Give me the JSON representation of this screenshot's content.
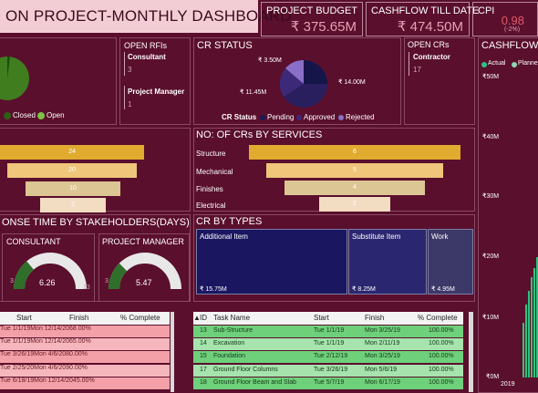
{
  "header": {
    "title": "ON PROJECT-MONTHLY DASHBOARD",
    "kpis": [
      {
        "label": "PROJECT BUDGET",
        "value": "₹ 375.65M"
      },
      {
        "label": "CASHFLOW TILL DATE",
        "value": "₹ 474.50M"
      },
      {
        "label": "CPI",
        "value": "0.98",
        "sub": "(-2%)"
      }
    ]
  },
  "rfi": {
    "legend": [
      "Closed",
      "Open"
    ],
    "title": "OPEN RFIs",
    "items": [
      {
        "label": "Consultant",
        "value": "3"
      },
      {
        "label": "Project Manager",
        "value": "1"
      }
    ]
  },
  "cr_status": {
    "title": "CR STATUS",
    "labels": [
      "₹ 3.50M",
      "₹ 14.00M",
      "₹ 11.45M"
    ],
    "legend_title": "CR Status",
    "legend": [
      "Pending",
      "Approved",
      "Rejected"
    ]
  },
  "open_crs": {
    "title": "OPEN CRs",
    "label": "Contractor",
    "value": "17"
  },
  "cashflow": {
    "title": "CASHFLOW",
    "legend": [
      "Actual",
      "Planne"
    ],
    "ticks": [
      "₹50M",
      "₹40M",
      "₹30M",
      "₹20M",
      "₹10M",
      "₹0M"
    ],
    "year": "2019"
  },
  "funnel_left": {
    "values": [
      "24",
      "20",
      "10",
      "2"
    ]
  },
  "crs_by_services": {
    "title": "NO: OF CRs BY SERVICES",
    "chart_data": {
      "type": "bar",
      "categories": [
        "Structure",
        "Mechanical",
        "Finishes",
        "Electrical"
      ],
      "values": [
        6,
        5,
        4,
        2
      ]
    }
  },
  "response_time": {
    "title": "ONSE TIME BY STAKEHOLDERS(DAYS)",
    "gauges": [
      {
        "label": "CONSULTANT",
        "value": "6.26",
        "min": "3",
        "max": "13"
      },
      {
        "label": "PROJECT MANAGER",
        "value": "5.47",
        "min": "3",
        "max": "13"
      }
    ]
  },
  "cr_by_types": {
    "title": "CR BY TYPES",
    "items": [
      {
        "label": "Additional Item",
        "value": "₹ 15.75M"
      },
      {
        "label": "Substitute Item",
        "value": "₹ 8.25M"
      },
      {
        "label": "Work",
        "value": "₹ 4.95M"
      }
    ]
  },
  "left_table": {
    "headers": [
      "Start",
      "Finish",
      "% Complete"
    ],
    "rows": [
      [
        "Tue 1/1/19",
        "Mon 12/14/20",
        "68.00%"
      ],
      [
        "Tue 1/1/19",
        "Mon 12/14/20",
        "65.00%"
      ],
      [
        "Tue 3/26/19",
        "Mon 4/6/20",
        "80.00%"
      ],
      [
        "Tue 2/25/20",
        "Mon 4/6/20",
        "90.00%"
      ],
      [
        "Tue 6/18/19",
        "Mon 12/14/20",
        "45.00%"
      ]
    ]
  },
  "right_table": {
    "headers": [
      "ID",
      "Task Name",
      "Start",
      "Finish",
      "% Complete"
    ],
    "rows": [
      [
        "13",
        "Sub-Structure",
        "Tue 1/1/19",
        "Mon 3/25/19",
        "100.00%"
      ],
      [
        "14",
        "Excavation",
        "Tue 1/1/19",
        "Mon 2/11/19",
        "100.00%"
      ],
      [
        "15",
        "Foundation",
        "Tue 2/12/19",
        "Mon 3/25/19",
        "100.00%"
      ],
      [
        "17",
        "Ground Floor Columns",
        "Tue 3/26/19",
        "Mon 5/6/19",
        "100.00%"
      ],
      [
        "18",
        "Ground Floor Beam and Slab",
        "Tue 5/7/19",
        "Mon 6/17/19",
        "100.00%"
      ]
    ]
  }
}
